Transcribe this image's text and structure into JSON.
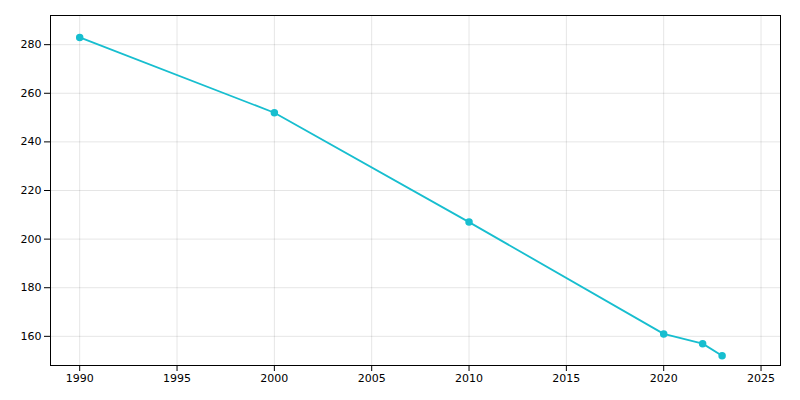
{
  "chart_data": {
    "type": "line",
    "x": [
      1990,
      2000,
      2010,
      2020,
      2022,
      2023
    ],
    "values": [
      283,
      252,
      207,
      161,
      157,
      152
    ],
    "color": "#17BECF",
    "marker": "circle",
    "xlim": [
      1988.5,
      2026
    ],
    "ylim": [
      148,
      292
    ],
    "xticks": [
      1990,
      1995,
      2000,
      2005,
      2010,
      2015,
      2020,
      2025
    ],
    "yticks": [
      160,
      180,
      200,
      220,
      240,
      260,
      280
    ],
    "grid": true
  }
}
